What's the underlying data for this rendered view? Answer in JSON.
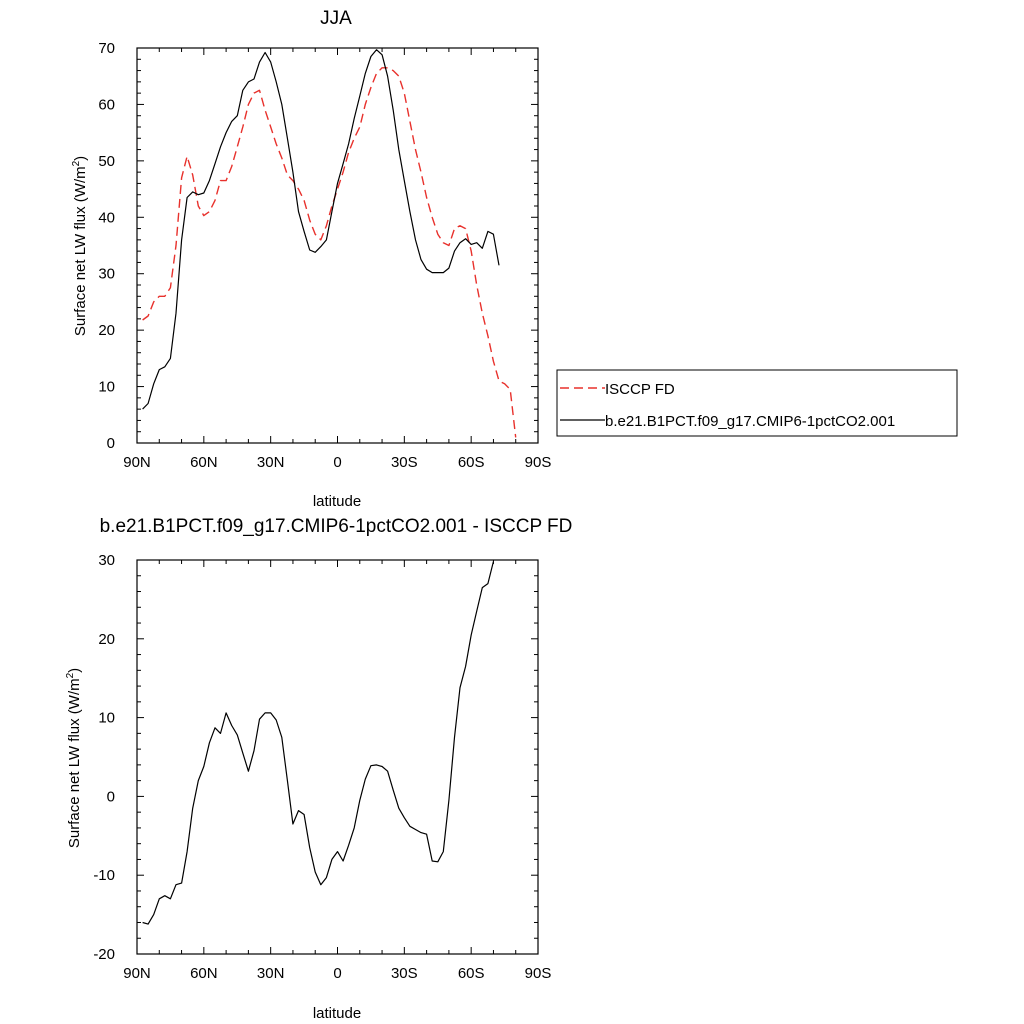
{
  "chart_data": [
    {
      "type": "line",
      "title": "JJA",
      "xlabel": "latitude",
      "ylabel": "Surface net LW flux (W/m",
      "ylabel_sup": "2",
      "ylabel_close": ")",
      "xlim": [
        -90,
        90
      ],
      "ylim": [
        0,
        70
      ],
      "x_ticks": [
        -90,
        -60,
        -30,
        0,
        30,
        60,
        90
      ],
      "x_tick_labels": [
        "90N",
        "60N",
        "30N",
        "0",
        "30S",
        "60S",
        "90S"
      ],
      "y_ticks": [
        0,
        10,
        20,
        30,
        40,
        50,
        60,
        70
      ],
      "y_tick_labels": [
        "0",
        "10",
        "20",
        "30",
        "40",
        "50",
        "60",
        "70"
      ],
      "legend_position": "right-outside",
      "series": [
        {
          "name": "ISCCP FD",
          "color": "#e8312c",
          "dash": "dashed",
          "points": [
            [
              -87.5,
              21.8
            ],
            [
              -85,
              22.5
            ],
            [
              -82.5,
              25
            ],
            [
              -80,
              26
            ],
            [
              -77.5,
              26
            ],
            [
              -75,
              27.5
            ],
            [
              -72.5,
              35
            ],
            [
              -70,
              47
            ],
            [
              -67.5,
              50.8
            ],
            [
              -65,
              47.5
            ],
            [
              -62.5,
              42
            ],
            [
              -60,
              40.3
            ],
            [
              -57.5,
              41
            ],
            [
              -55,
              43
            ],
            [
              -52.5,
              46.5
            ],
            [
              -50,
              46.5
            ],
            [
              -47.5,
              49
            ],
            [
              -45,
              52.5
            ],
            [
              -42.5,
              56
            ],
            [
              -40,
              60
            ],
            [
              -37.5,
              62
            ],
            [
              -35,
              62.5
            ],
            [
              -32.5,
              59
            ],
            [
              -30,
              56
            ],
            [
              -27.5,
              53
            ],
            [
              -25,
              50.5
            ],
            [
              -22.5,
              47.5
            ],
            [
              -20,
              46.5
            ],
            [
              -17.5,
              45
            ],
            [
              -15,
              43
            ],
            [
              -12.5,
              39.5
            ],
            [
              -10,
              37
            ],
            [
              -7.5,
              36
            ],
            [
              -5,
              38.5
            ],
            [
              -2.5,
              42
            ],
            [
              0,
              45
            ],
            [
              2.5,
              48
            ],
            [
              5,
              51.5
            ],
            [
              7.5,
              54
            ],
            [
              10,
              56
            ],
            [
              12.5,
              60
            ],
            [
              15,
              63
            ],
            [
              17.5,
              65.5
            ],
            [
              20,
              66.5
            ],
            [
              22.5,
              66.5
            ],
            [
              25,
              66
            ],
            [
              27.5,
              65
            ],
            [
              30,
              62
            ],
            [
              32.5,
              57
            ],
            [
              35,
              52
            ],
            [
              37.5,
              48
            ],
            [
              40,
              43.5
            ],
            [
              42.5,
              40
            ],
            [
              45,
              37
            ],
            [
              47.5,
              35.5
            ],
            [
              50,
              35
            ],
            [
              52.5,
              38
            ],
            [
              55,
              38.5
            ],
            [
              57.5,
              38
            ],
            [
              60,
              34
            ],
            [
              62.5,
              28
            ],
            [
              65,
              23
            ],
            [
              67.5,
              19
            ],
            [
              70,
              14.5
            ],
            [
              72.5,
              11
            ],
            [
              75,
              10.5
            ],
            [
              77.5,
              9.5
            ],
            [
              80,
              1
            ]
          ]
        },
        {
          "name": "b.e21.B1PCT.f09_g17.CMIP6-1pctCO2.001",
          "color": "#000000",
          "dash": "solid",
          "points": [
            [
              -87.5,
              6
            ],
            [
              -85,
              7
            ],
            [
              -82.5,
              10.5
            ],
            [
              -80,
              13
            ],
            [
              -77.5,
              13.5
            ],
            [
              -75,
              15
            ],
            [
              -72.5,
              23
            ],
            [
              -70,
              36
            ],
            [
              -67.5,
              43.5
            ],
            [
              -65,
              44.5
            ],
            [
              -62.5,
              44
            ],
            [
              -60,
              44.3
            ],
            [
              -57.5,
              46.5
            ],
            [
              -55,
              49.5
            ],
            [
              -52.5,
              52.5
            ],
            [
              -50,
              55
            ],
            [
              -47.5,
              57
            ],
            [
              -45,
              58
            ],
            [
              -42.5,
              62.5
            ],
            [
              -40,
              64
            ],
            [
              -37.5,
              64.5
            ],
            [
              -35,
              67.5
            ],
            [
              -32.5,
              69.2
            ],
            [
              -30,
              67.5
            ],
            [
              -27.5,
              64
            ],
            [
              -25,
              60
            ],
            [
              -22.5,
              54
            ],
            [
              -20,
              48
            ],
            [
              -17.5,
              41
            ],
            [
              -15,
              37.5
            ],
            [
              -12.5,
              34.2
            ],
            [
              -10,
              33.8
            ],
            [
              -7.5,
              34.8
            ],
            [
              -5,
              36
            ],
            [
              -2.5,
              41
            ],
            [
              0,
              46
            ],
            [
              2.5,
              49.5
            ],
            [
              5,
              53
            ],
            [
              7.5,
              57.5
            ],
            [
              10,
              61.5
            ],
            [
              12.5,
              65.5
            ],
            [
              15,
              68.5
            ],
            [
              17.5,
              69.7
            ],
            [
              20,
              68.8
            ],
            [
              22.5,
              65
            ],
            [
              25,
              59
            ],
            [
              27.5,
              52
            ],
            [
              30,
              46.5
            ],
            [
              32.5,
              41
            ],
            [
              35,
              36
            ],
            [
              37.5,
              32.5
            ],
            [
              40,
              30.8
            ],
            [
              42.5,
              30.2
            ],
            [
              45,
              30.2
            ],
            [
              47.5,
              30.2
            ],
            [
              50,
              31
            ],
            [
              52.5,
              34
            ],
            [
              55,
              35.5
            ],
            [
              57.5,
              36.2
            ],
            [
              60,
              35.2
            ],
            [
              62.5,
              35.5
            ],
            [
              65,
              34.5
            ],
            [
              67.5,
              37.5
            ],
            [
              70,
              37
            ],
            [
              72.5,
              31.5
            ]
          ]
        }
      ]
    },
    {
      "type": "line",
      "title": "b.e21.B1PCT.f09_g17.CMIP6-1pctCO2.001 - ISCCP FD",
      "xlabel": "latitude",
      "ylabel": "Surface net LW flux (W/m",
      "ylabel_sup": "2",
      "ylabel_close": ")",
      "xlim": [
        -90,
        90
      ],
      "ylim": [
        -20,
        30
      ],
      "x_ticks": [
        -90,
        -60,
        -30,
        0,
        30,
        60,
        90
      ],
      "x_tick_labels": [
        "90N",
        "60N",
        "30N",
        "0",
        "30S",
        "60S",
        "90S"
      ],
      "y_ticks": [
        -20,
        -10,
        0,
        10,
        20,
        30
      ],
      "y_tick_labels": [
        "-20",
        "-10",
        "0",
        "10",
        "20",
        "30"
      ],
      "series": [
        {
          "color": "#000000",
          "dash": "solid",
          "points": [
            [
              -87.5,
              -16
            ],
            [
              -85,
              -16.2
            ],
            [
              -82.5,
              -15
            ],
            [
              -80,
              -13
            ],
            [
              -77.5,
              -12.6
            ],
            [
              -75,
              -13
            ],
            [
              -72.5,
              -11.2
            ],
            [
              -70,
              -11
            ],
            [
              -67.5,
              -7
            ],
            [
              -65,
              -1.5
            ],
            [
              -62.5,
              2
            ],
            [
              -60,
              3.8
            ],
            [
              -57.5,
              6.8
            ],
            [
              -55,
              8.7
            ],
            [
              -52.5,
              8
            ],
            [
              -50,
              10.6
            ],
            [
              -47.5,
              9
            ],
            [
              -45,
              7.8
            ],
            [
              -42.5,
              5.5
            ],
            [
              -40,
              3.2
            ],
            [
              -37.5,
              5.8
            ],
            [
              -35,
              9.8
            ],
            [
              -32.5,
              10.6
            ],
            [
              -30,
              10.6
            ],
            [
              -27.5,
              9.7
            ],
            [
              -25,
              7.5
            ],
            [
              -22.5,
              2
            ],
            [
              -20,
              -3.5
            ],
            [
              -17.5,
              -1.8
            ],
            [
              -15,
              -2.3
            ],
            [
              -12.5,
              -6.5
            ],
            [
              -10,
              -9.6
            ],
            [
              -7.5,
              -11.2
            ],
            [
              -5,
              -10.3
            ],
            [
              -2.5,
              -8
            ],
            [
              0,
              -7
            ],
            [
              2.5,
              -8.2
            ],
            [
              5,
              -6.2
            ],
            [
              7.5,
              -4
            ],
            [
              10,
              -0.5
            ],
            [
              12.5,
              2.2
            ],
            [
              15,
              3.9
            ],
            [
              17.5,
              4
            ],
            [
              20,
              3.8
            ],
            [
              22.5,
              3.2
            ],
            [
              25,
              0.8
            ],
            [
              27.5,
              -1.5
            ],
            [
              30,
              -2.7
            ],
            [
              32.5,
              -3.8
            ],
            [
              35,
              -4.2
            ],
            [
              37.5,
              -4.6
            ],
            [
              40,
              -4.8
            ],
            [
              42.5,
              -8.2
            ],
            [
              45,
              -8.3
            ],
            [
              47.5,
              -7
            ],
            [
              50,
              -0.5
            ],
            [
              52.5,
              7.5
            ],
            [
              55,
              13.8
            ],
            [
              57.5,
              16.5
            ],
            [
              60,
              20.5
            ],
            [
              62.5,
              23.5
            ],
            [
              65,
              26.5
            ],
            [
              67.5,
              27
            ],
            [
              70,
              29.8
            ]
          ]
        }
      ]
    }
  ]
}
